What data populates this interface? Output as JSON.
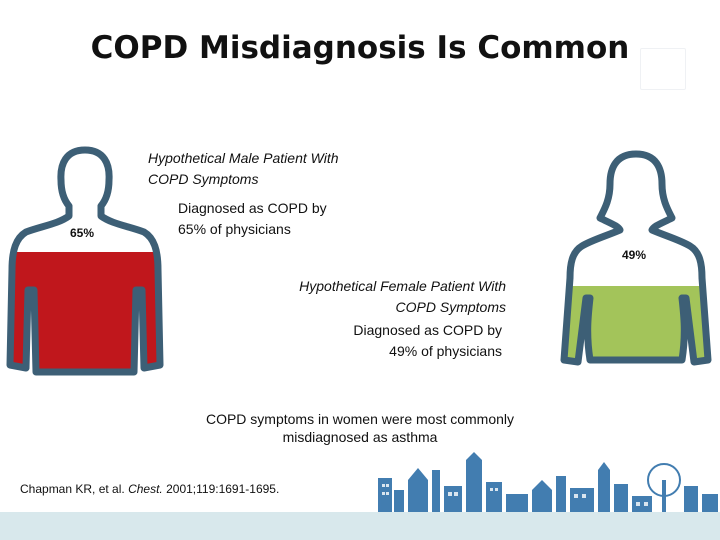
{
  "title": "COPD Misdiagnosis Is Common",
  "male": {
    "heading": "Hypothetical Male Patient With COPD Symptoms",
    "heading_line1": "Hypothetical Male Patient With",
    "heading_line2": "COPD Symptoms",
    "result_line1": "Diagnosed as COPD by",
    "result_line2": "65% of physicians",
    "percent_label": "65%",
    "fill_fraction": 0.65,
    "fill_color": "#c0171c"
  },
  "female": {
    "heading_line1": "Hypothetical Female Patient With",
    "heading_line2": "COPD Symptoms",
    "result_line1": "Diagnosed as COPD by",
    "result_line2": "49% of physicians",
    "percent_label": "49%",
    "fill_fraction": 0.49,
    "fill_color": "#a3c45a"
  },
  "outline_color": "#3d5f76",
  "footnote_line1": "COPD symptoms in women were most commonly",
  "footnote_line2": "misdiagnosed as asthma",
  "citation": {
    "authors": "Chapman KR, et al.",
    "journal": "Chest.",
    "details": "2001;119:1691-1695."
  },
  "skyline_color": "#2e6fa8",
  "bottom_bar_color": "#d8e8ec"
}
